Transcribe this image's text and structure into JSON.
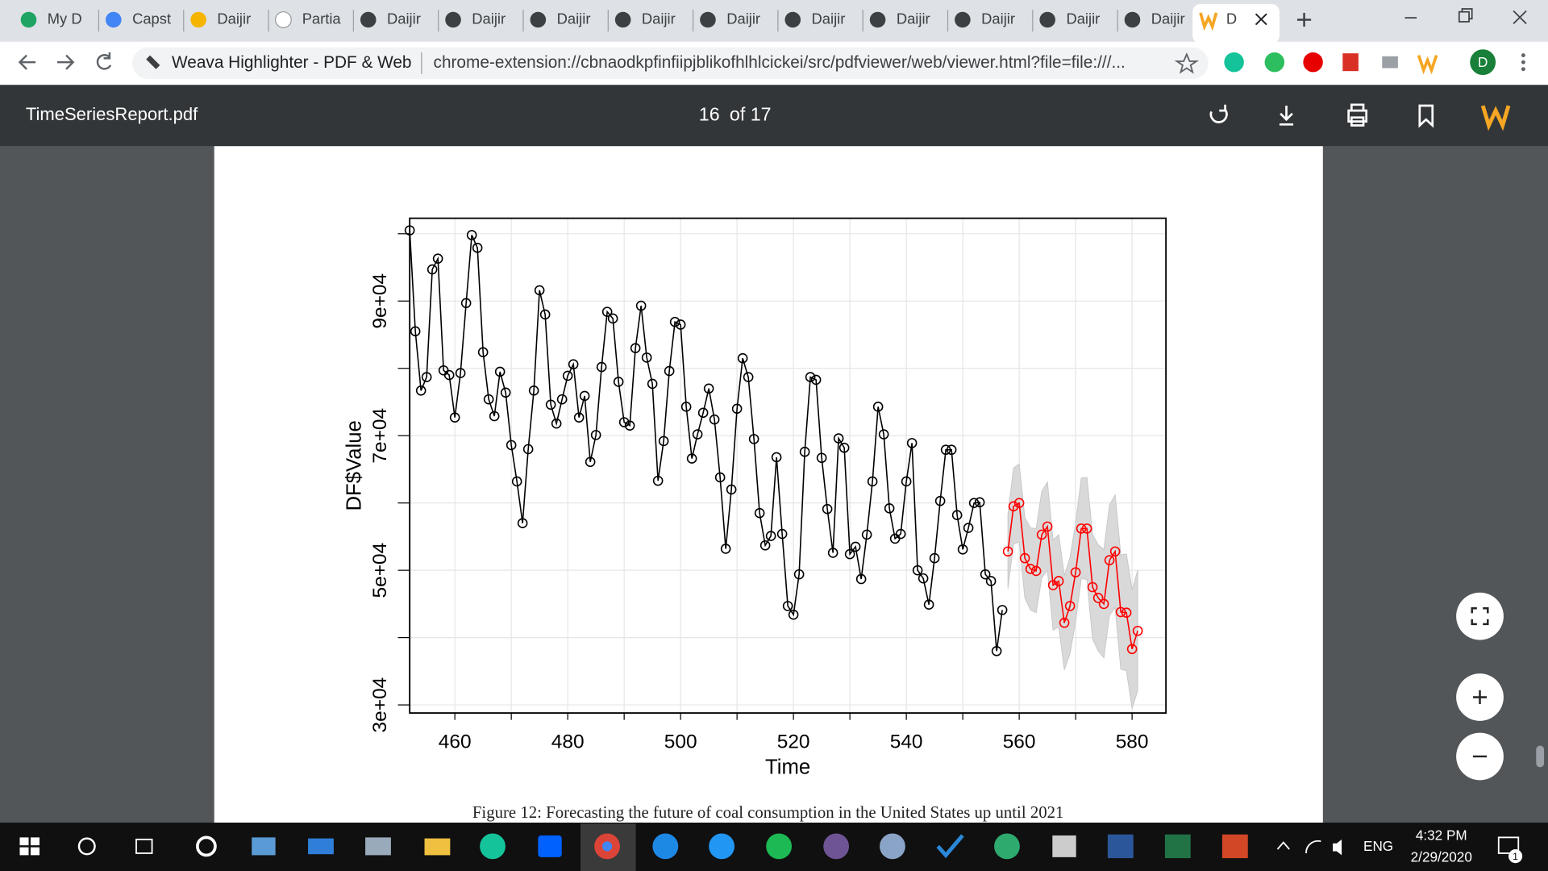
{
  "browser": {
    "tabs": [
      "My D",
      "Capst",
      "Daijir",
      "Partia",
      "Daijir",
      "Daijir",
      "Daijir",
      "Daijir",
      "Daijir",
      "Daijir",
      "Daijir",
      "Daijir",
      "Daijir",
      "Daijir",
      "D"
    ],
    "extension_name": "Weava Highlighter - PDF & Web",
    "url": "chrome-extension://cbnaodkpfinfiipjblikofhlhlcickei/src/pdfviewer/web/viewer.html?file=file:///...",
    "profile": "D"
  },
  "pdf_toolbar": {
    "filename": "TimeSeriesReport.pdf",
    "page": "16",
    "page_total": "of 17"
  },
  "chart_data": {
    "type": "line",
    "xlabel": "Time",
    "ylabel": "DF$Value",
    "caption": "Figure 12: Forecasting the future of coal consumption in the United States up until 2021",
    "xlim": [
      452,
      586
    ],
    "ylim": [
      28800,
      102300
    ],
    "xticks": [
      460,
      480,
      500,
      520,
      540,
      560,
      580
    ],
    "xminor": [
      470,
      490,
      510,
      530,
      550,
      570
    ],
    "yticks": [
      {
        "value": 30000,
        "label": "3e+04"
      },
      {
        "value": 50000,
        "label": "5e+04"
      },
      {
        "value": 70000,
        "label": "7e+04"
      },
      {
        "value": 90000,
        "label": "9e+04"
      }
    ],
    "yminor": [
      40000,
      60000,
      80000,
      100000
    ],
    "grid": true,
    "band": {
      "color": "#d9d9d9",
      "x": [
        558,
        559,
        560,
        561,
        562,
        563,
        564,
        565,
        566,
        567,
        568,
        569,
        570,
        571,
        572,
        573,
        574,
        575,
        576,
        577,
        578,
        579,
        580,
        581
      ],
      "upper": [
        58300,
        65200,
        65800,
        57800,
        56300,
        56200,
        61700,
        63100,
        54500,
        55300,
        49200,
        51900,
        57000,
        63700,
        63800,
        55300,
        53800,
        53100,
        59700,
        61200,
        52300,
        52400,
        47100,
        50000
      ],
      "lower": [
        47300,
        53900,
        54200,
        45900,
        44100,
        43700,
        48900,
        50000,
        41100,
        41600,
        35200,
        37600,
        42400,
        48800,
        48600,
        39800,
        38000,
        37000,
        43300,
        44500,
        35300,
        35100,
        29500,
        32100
      ]
    },
    "series": [
      {
        "color": "#000000",
        "x": [
          452,
          453,
          454,
          455,
          456,
          457,
          458,
          459,
          460,
          461,
          462,
          463,
          464,
          465,
          466,
          467,
          468,
          469,
          470,
          471,
          472,
          473,
          474,
          475,
          476,
          477,
          478,
          479,
          480,
          481,
          482,
          483,
          484,
          485,
          486,
          487,
          488,
          489,
          490,
          491,
          492,
          493,
          494,
          495,
          496,
          497,
          498,
          499,
          500,
          501,
          502,
          503,
          504,
          505,
          506,
          507,
          508,
          509,
          510,
          511,
          512,
          513,
          514,
          515,
          516,
          517,
          518,
          519,
          520,
          521,
          522,
          523,
          524,
          525,
          526,
          527,
          528,
          529,
          530,
          531,
          532,
          533,
          534,
          535,
          536,
          537,
          538,
          539,
          540,
          541,
          542,
          543,
          544,
          545,
          546,
          547,
          548,
          549,
          550,
          551,
          552,
          553,
          554,
          555,
          556,
          557
        ],
        "values": [
          100500,
          85500,
          76700,
          78700,
          94700,
          96300,
          79700,
          79000,
          72700,
          79300,
          89700,
          99800,
          97900,
          82400,
          75400,
          72900,
          79500,
          76400,
          68600,
          63200,
          57000,
          68000,
          76700,
          91600,
          88000,
          74600,
          71800,
          75400,
          78900,
          80600,
          72700,
          75900,
          66100,
          70100,
          80200,
          88400,
          87400,
          78000,
          72000,
          71500,
          83000,
          89300,
          81600,
          77700,
          63300,
          69200,
          79600,
          86900,
          86500,
          74300,
          66600,
          70200,
          73400,
          77000,
          72400,
          63800,
          53200,
          62000,
          74000,
          81500,
          78700,
          69500,
          58500,
          53700,
          55100,
          66800,
          55400,
          44700,
          43400,
          49400,
          67600,
          78700,
          78300,
          66700,
          59100,
          52600,
          69600,
          68200,
          52400,
          53500,
          48700,
          55300,
          63200,
          74300,
          70200,
          59200,
          54700,
          55400,
          63200,
          68900,
          50000,
          48800,
          44900,
          51800,
          60300,
          67900,
          67900,
          58200,
          53100,
          56300,
          60000,
          60100,
          49400,
          48400,
          38000,
          44100
        ]
      },
      {
        "color": "#ff0000",
        "x": [
          558,
          559,
          560,
          561,
          562,
          563,
          564,
          565,
          566,
          567,
          568,
          569,
          570,
          571,
          572,
          573,
          574,
          575,
          576,
          577,
          578,
          579,
          580,
          581
        ],
        "values": [
          52800,
          59500,
          60000,
          51800,
          50200,
          49900,
          55300,
          56500,
          47800,
          48400,
          42200,
          44700,
          49700,
          56200,
          56200,
          47500,
          45900,
          45000,
          51500,
          52800,
          43800,
          43700,
          38300,
          41000
        ]
      }
    ]
  },
  "taskbar": {
    "language": "ENG",
    "time": "4:32 PM",
    "date": "2/29/2020",
    "notifications": "1"
  }
}
